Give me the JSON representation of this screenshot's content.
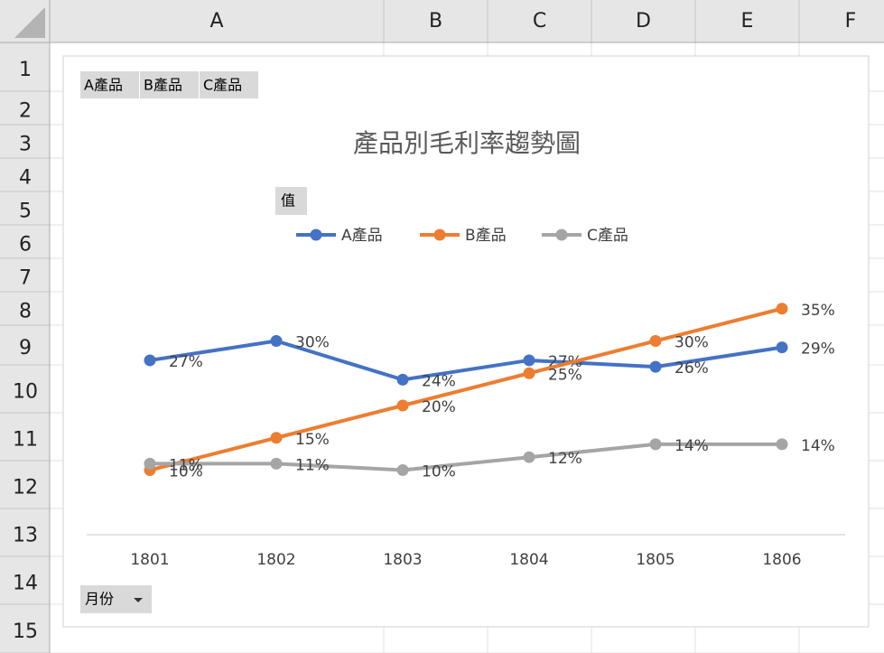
{
  "sheet": {
    "columns": [
      "A",
      "B",
      "C",
      "D",
      "E",
      "F"
    ],
    "rows": [
      "1",
      "2",
      "3",
      "4",
      "5",
      "6",
      "7",
      "8",
      "9",
      "10",
      "11",
      "12",
      "13",
      "14",
      "15"
    ]
  },
  "pivot_buttons": {
    "legend_fields": [
      "A產品",
      "B產品",
      "C產品"
    ],
    "values_field": "值",
    "axis_field": "月份"
  },
  "chart_data": {
    "type": "line",
    "title": "產品別毛利率趨勢圖",
    "categories": [
      "1801",
      "1802",
      "1803",
      "1804",
      "1805",
      "1806"
    ],
    "ylim": [
      0,
      40
    ],
    "legend": "top",
    "series": [
      {
        "name": "A產品",
        "color": "#4472c4",
        "values": [
          27,
          30,
          24,
          27,
          26,
          29
        ],
        "value_labels": [
          "27%",
          "30%",
          "24%",
          "27%",
          "26%",
          "29%"
        ]
      },
      {
        "name": "B產品",
        "color": "#ed7d31",
        "values": [
          10,
          15,
          20,
          25,
          30,
          35
        ],
        "value_labels": [
          "10%",
          "15%",
          "20%",
          "25%",
          "30%",
          "35%"
        ]
      },
      {
        "name": "C產品",
        "color": "#a5a5a5",
        "values": [
          11,
          11,
          10,
          12,
          14,
          14
        ],
        "value_labels": [
          "11%",
          "11%",
          "10%",
          "12%",
          "14%",
          "14%"
        ]
      }
    ]
  }
}
